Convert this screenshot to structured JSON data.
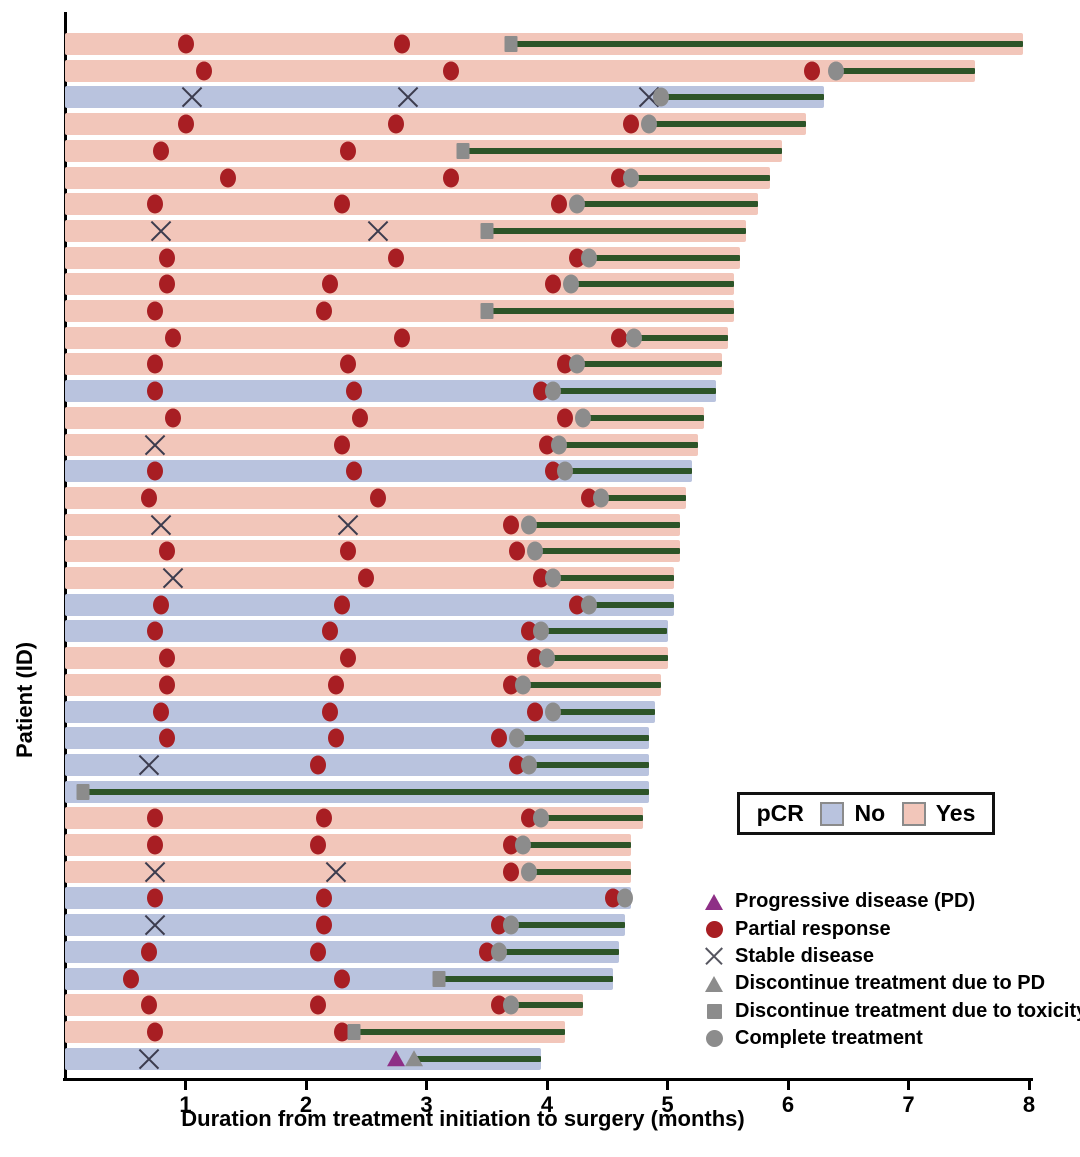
{
  "chart_data": {
    "type": "bar",
    "subtype": "swimmer-plot",
    "title": "",
    "xlabel": "Duration from treatment initiation to surgery (months)",
    "ylabel": "Patient (ID)",
    "xlim": [
      0,
      8
    ],
    "xticks": [
      1,
      2,
      3,
      4,
      5,
      6,
      7,
      8
    ],
    "grid": false,
    "colors": {
      "bar_yes": "#f2c6ba",
      "bar_no": "#b9c3de",
      "line": "#2d5428",
      "pr": "#a81e23",
      "gray": "#8c8c8c",
      "pd": "#8e2f86",
      "sd": "#3c3c4e"
    },
    "pcr_legend": {
      "title": "pCR",
      "items": [
        {
          "label": "No",
          "color": "#b9c3de"
        },
        {
          "label": "Yes",
          "color": "#f2c6ba"
        }
      ]
    },
    "marker_legend": [
      {
        "marker": "triangle",
        "color": "#8e2f86",
        "label": "Progressive disease (PD)"
      },
      {
        "marker": "circle",
        "color": "#a81e23",
        "label": "Partial response"
      },
      {
        "marker": "x",
        "color": "#55555f",
        "label": "Stable disease"
      },
      {
        "marker": "triangle",
        "color": "#8c8c8c",
        "label": "Discontinue treatment due to PD"
      },
      {
        "marker": "square",
        "color": "#8c8c8c",
        "label": "Discontinue treatment due to toxicity"
      },
      {
        "marker": "circle",
        "color": "#8c8c8c",
        "label": "Complete treatment"
      }
    ],
    "marker_types": {
      "PR": "partial-response",
      "SD": "stable-disease",
      "CT": "complete-treatment",
      "DT": "discontinue-toxicity",
      "PD": "progressive-disease",
      "DP": "discontinue-due-to-pd"
    },
    "patients": [
      {
        "pcr": "Yes",
        "surgery": 7.95,
        "line_start": 3.7,
        "markers": [
          [
            "PR",
            1.0
          ],
          [
            "PR",
            2.8
          ],
          [
            "DT",
            3.7
          ]
        ]
      },
      {
        "pcr": "Yes",
        "surgery": 7.55,
        "line_start": 6.4,
        "markers": [
          [
            "PR",
            1.15
          ],
          [
            "PR",
            3.2
          ],
          [
            "PR",
            6.2
          ],
          [
            "CT",
            6.4
          ]
        ]
      },
      {
        "pcr": "No",
        "surgery": 6.3,
        "line_start": 4.95,
        "markers": [
          [
            "SD",
            1.05
          ],
          [
            "SD",
            2.85
          ],
          [
            "SD",
            4.85
          ],
          [
            "CT",
            4.95
          ]
        ]
      },
      {
        "pcr": "Yes",
        "surgery": 6.15,
        "line_start": 4.85,
        "markers": [
          [
            "PR",
            1.0
          ],
          [
            "PR",
            2.75
          ],
          [
            "PR",
            4.7
          ],
          [
            "CT",
            4.85
          ]
        ]
      },
      {
        "pcr": "Yes",
        "surgery": 5.95,
        "line_start": 3.3,
        "markers": [
          [
            "PR",
            0.8
          ],
          [
            "PR",
            2.35
          ],
          [
            "DT",
            3.3
          ]
        ]
      },
      {
        "pcr": "Yes",
        "surgery": 5.85,
        "line_start": 4.7,
        "markers": [
          [
            "PR",
            1.35
          ],
          [
            "PR",
            3.2
          ],
          [
            "PR",
            4.6
          ],
          [
            "CT",
            4.7
          ]
        ]
      },
      {
        "pcr": "Yes",
        "surgery": 5.75,
        "line_start": 4.25,
        "markers": [
          [
            "PR",
            0.75
          ],
          [
            "PR",
            2.3
          ],
          [
            "PR",
            4.1
          ],
          [
            "CT",
            4.25
          ]
        ]
      },
      {
        "pcr": "Yes",
        "surgery": 5.65,
        "line_start": 3.5,
        "markers": [
          [
            "SD",
            0.8
          ],
          [
            "SD",
            2.6
          ],
          [
            "DT",
            3.5
          ]
        ]
      },
      {
        "pcr": "Yes",
        "surgery": 5.6,
        "line_start": 4.35,
        "markers": [
          [
            "PR",
            0.85
          ],
          [
            "PR",
            2.75
          ],
          [
            "PR",
            4.25
          ],
          [
            "CT",
            4.35
          ]
        ]
      },
      {
        "pcr": "Yes",
        "surgery": 5.55,
        "line_start": 4.2,
        "markers": [
          [
            "PR",
            0.85
          ],
          [
            "PR",
            2.2
          ],
          [
            "PR",
            4.05
          ],
          [
            "CT",
            4.2
          ]
        ]
      },
      {
        "pcr": "Yes",
        "surgery": 5.55,
        "line_start": 3.5,
        "markers": [
          [
            "PR",
            0.75
          ],
          [
            "PR",
            2.15
          ],
          [
            "DT",
            3.5
          ]
        ]
      },
      {
        "pcr": "Yes",
        "surgery": 5.5,
        "line_start": 4.72,
        "markers": [
          [
            "PR",
            0.9
          ],
          [
            "PR",
            2.8
          ],
          [
            "PR",
            4.6
          ],
          [
            "CT",
            4.72
          ]
        ]
      },
      {
        "pcr": "Yes",
        "surgery": 5.45,
        "line_start": 4.25,
        "markers": [
          [
            "PR",
            0.75
          ],
          [
            "PR",
            2.35
          ],
          [
            "PR",
            4.15
          ],
          [
            "CT",
            4.25
          ]
        ]
      },
      {
        "pcr": "No",
        "surgery": 5.4,
        "line_start": 4.05,
        "markers": [
          [
            "PR",
            0.75
          ],
          [
            "PR",
            2.4
          ],
          [
            "PR",
            3.95
          ],
          [
            "CT",
            4.05
          ]
        ]
      },
      {
        "pcr": "Yes",
        "surgery": 5.3,
        "line_start": 4.3,
        "markers": [
          [
            "PR",
            0.9
          ],
          [
            "PR",
            2.45
          ],
          [
            "PR",
            4.15
          ],
          [
            "CT",
            4.3
          ]
        ]
      },
      {
        "pcr": "Yes",
        "surgery": 5.25,
        "line_start": 4.1,
        "markers": [
          [
            "SD",
            0.75
          ],
          [
            "PR",
            2.3
          ],
          [
            "PR",
            4.0
          ],
          [
            "CT",
            4.1
          ]
        ]
      },
      {
        "pcr": "No",
        "surgery": 5.2,
        "line_start": 4.15,
        "markers": [
          [
            "PR",
            0.75
          ],
          [
            "PR",
            2.4
          ],
          [
            "PR",
            4.05
          ],
          [
            "CT",
            4.15
          ]
        ]
      },
      {
        "pcr": "Yes",
        "surgery": 5.15,
        "line_start": 4.45,
        "markers": [
          [
            "PR",
            0.7
          ],
          [
            "PR",
            2.6
          ],
          [
            "PR",
            4.35
          ],
          [
            "CT",
            4.45
          ]
        ]
      },
      {
        "pcr": "Yes",
        "surgery": 5.1,
        "line_start": 3.85,
        "markers": [
          [
            "SD",
            0.8
          ],
          [
            "SD",
            2.35
          ],
          [
            "PR",
            3.7
          ],
          [
            "CT",
            3.85
          ]
        ]
      },
      {
        "pcr": "Yes",
        "surgery": 5.1,
        "line_start": 3.9,
        "markers": [
          [
            "PR",
            0.85
          ],
          [
            "PR",
            2.35
          ],
          [
            "PR",
            3.75
          ],
          [
            "CT",
            3.9
          ]
        ]
      },
      {
        "pcr": "Yes",
        "surgery": 5.05,
        "line_start": 4.05,
        "markers": [
          [
            "SD",
            0.9
          ],
          [
            "PR",
            2.5
          ],
          [
            "PR",
            3.95
          ],
          [
            "CT",
            4.05
          ]
        ]
      },
      {
        "pcr": "No",
        "surgery": 5.05,
        "line_start": 4.35,
        "markers": [
          [
            "PR",
            0.8
          ],
          [
            "PR",
            2.3
          ],
          [
            "PR",
            4.25
          ],
          [
            "CT",
            4.35
          ]
        ]
      },
      {
        "pcr": "No",
        "surgery": 5.0,
        "line_start": 3.95,
        "markers": [
          [
            "PR",
            0.75
          ],
          [
            "PR",
            2.2
          ],
          [
            "PR",
            3.85
          ],
          [
            "CT",
            3.95
          ]
        ]
      },
      {
        "pcr": "Yes",
        "surgery": 5.0,
        "line_start": 4.0,
        "markers": [
          [
            "PR",
            0.85
          ],
          [
            "PR",
            2.35
          ],
          [
            "PR",
            3.9
          ],
          [
            "CT",
            4.0
          ]
        ]
      },
      {
        "pcr": "Yes",
        "surgery": 4.95,
        "line_start": 3.8,
        "markers": [
          [
            "PR",
            0.85
          ],
          [
            "PR",
            2.25
          ],
          [
            "PR",
            3.7
          ],
          [
            "CT",
            3.8
          ]
        ]
      },
      {
        "pcr": "No",
        "surgery": 4.9,
        "line_start": 4.05,
        "markers": [
          [
            "PR",
            0.8
          ],
          [
            "PR",
            2.2
          ],
          [
            "PR",
            3.9
          ],
          [
            "CT",
            4.05
          ]
        ]
      },
      {
        "pcr": "No",
        "surgery": 4.85,
        "line_start": 3.75,
        "markers": [
          [
            "PR",
            0.85
          ],
          [
            "PR",
            2.25
          ],
          [
            "PR",
            3.6
          ],
          [
            "CT",
            3.75
          ]
        ]
      },
      {
        "pcr": "No",
        "surgery": 4.85,
        "line_start": 3.85,
        "markers": [
          [
            "SD",
            0.7
          ],
          [
            "PR",
            2.1
          ],
          [
            "PR",
            3.75
          ],
          [
            "CT",
            3.85
          ]
        ]
      },
      {
        "pcr": "No",
        "surgery": 4.85,
        "line_start": 0.15,
        "markers": [
          [
            "DT",
            0.15
          ]
        ]
      },
      {
        "pcr": "Yes",
        "surgery": 4.8,
        "line_start": 3.95,
        "markers": [
          [
            "PR",
            0.75
          ],
          [
            "PR",
            2.15
          ],
          [
            "PR",
            3.85
          ],
          [
            "CT",
            3.95
          ]
        ]
      },
      {
        "pcr": "Yes",
        "surgery": 4.7,
        "line_start": 3.8,
        "markers": [
          [
            "PR",
            0.75
          ],
          [
            "PR",
            2.1
          ],
          [
            "PR",
            3.7
          ],
          [
            "CT",
            3.8
          ]
        ]
      },
      {
        "pcr": "Yes",
        "surgery": 4.7,
        "line_start": 3.85,
        "markers": [
          [
            "SD",
            0.75
          ],
          [
            "SD",
            2.25
          ],
          [
            "PR",
            3.7
          ],
          [
            "CT",
            3.85
          ]
        ]
      },
      {
        "pcr": "No",
        "surgery": 4.7,
        "line_start": 4.65,
        "markers": [
          [
            "PR",
            0.75
          ],
          [
            "PR",
            2.15
          ],
          [
            "PR",
            4.55
          ],
          [
            "CT",
            4.65
          ]
        ]
      },
      {
        "pcr": "No",
        "surgery": 4.65,
        "line_start": 3.7,
        "markers": [
          [
            "SD",
            0.75
          ],
          [
            "PR",
            2.15
          ],
          [
            "PR",
            3.6
          ],
          [
            "CT",
            3.7
          ]
        ]
      },
      {
        "pcr": "No",
        "surgery": 4.6,
        "line_start": 3.6,
        "markers": [
          [
            "PR",
            0.7
          ],
          [
            "PR",
            2.1
          ],
          [
            "PR",
            3.5
          ],
          [
            "CT",
            3.6
          ]
        ]
      },
      {
        "pcr": "No",
        "surgery": 4.55,
        "line_start": 3.1,
        "markers": [
          [
            "PR",
            0.55
          ],
          [
            "PR",
            2.3
          ],
          [
            "DT",
            3.1
          ]
        ]
      },
      {
        "pcr": "Yes",
        "surgery": 4.3,
        "line_start": 3.7,
        "markers": [
          [
            "PR",
            0.7
          ],
          [
            "PR",
            2.1
          ],
          [
            "PR",
            3.6
          ],
          [
            "CT",
            3.7
          ]
        ]
      },
      {
        "pcr": "Yes",
        "surgery": 4.15,
        "line_start": 2.4,
        "markers": [
          [
            "PR",
            0.75
          ],
          [
            "PR",
            2.3
          ],
          [
            "DT",
            2.4
          ]
        ]
      },
      {
        "pcr": "No",
        "surgery": 3.95,
        "line_start": 2.9,
        "markers": [
          [
            "SD",
            0.7
          ],
          [
            "PD",
            2.75
          ],
          [
            "DP",
            2.9
          ]
        ]
      }
    ]
  }
}
